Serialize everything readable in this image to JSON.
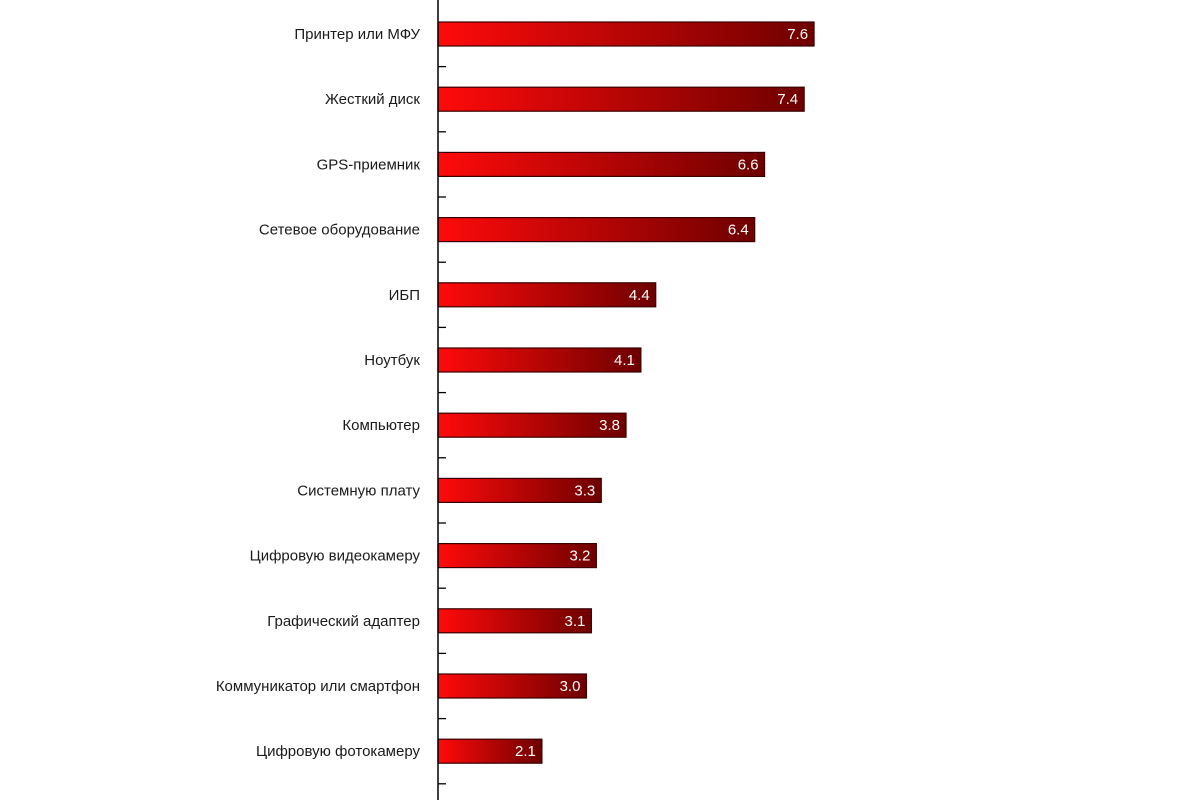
{
  "chart_data": {
    "type": "bar",
    "orientation": "horizontal",
    "categories": [
      "Принтер или МФУ",
      "Жесткий диск",
      "GPS-приемник",
      "Сетевое оборудование",
      "ИБП",
      "Ноутбук",
      "Компьютер",
      "Системную плату",
      "Цифровую видеокамеру",
      "Графический адаптер",
      "Коммуникатор или смартфон",
      "Цифровую фотокамеру"
    ],
    "values": [
      7.6,
      7.4,
      6.6,
      6.4,
      4.4,
      4.1,
      3.8,
      3.3,
      3.2,
      3.1,
      3.0,
      2.1
    ],
    "value_labels": [
      "7.6",
      "7.4",
      "6.6",
      "6.4",
      "4.4",
      "4.1",
      "3.8",
      "3.3",
      "3.2",
      "3.1",
      "3.0",
      "2.1"
    ],
    "xlim": [
      0,
      15.4
    ],
    "bar_color_start": "#ff0a0a",
    "bar_color_end": "#6e0000",
    "bar_border": "#3a0000",
    "grid": false,
    "legend": "none"
  }
}
